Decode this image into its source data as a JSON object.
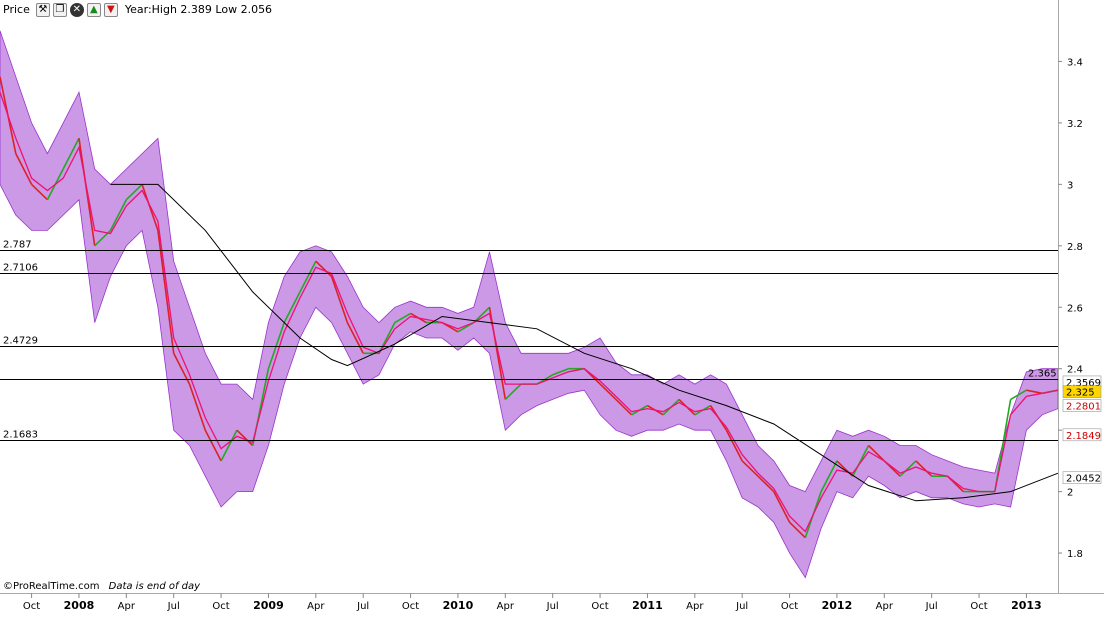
{
  "toolbar": {
    "label": "Price",
    "range_text": "Year:High 2.389 Low 2.056",
    "icons": [
      "wrench-icon",
      "window-icon",
      "close-icon",
      "move-up-icon",
      "move-down-icon"
    ]
  },
  "watermark": {
    "brand": "©ProRealTime.com",
    "note": "Data is end of day"
  },
  "chart_data": {
    "type": "line",
    "y_ticks": [
      3.4,
      3.2,
      3,
      2.8,
      2.6,
      2.4,
      2.2,
      2,
      1.8
    ],
    "y_tick_labels": [
      "3.4",
      "3.2",
      "3",
      "2.8",
      "2.6",
      "2.4",
      "",
      "2",
      "1.8"
    ],
    "ylim": [
      1.67,
      3.6
    ],
    "x_ticks": [
      {
        "date": "2007-10",
        "label": "Oct",
        "bold": false
      },
      {
        "date": "2008-01",
        "label": "2008",
        "bold": true
      },
      {
        "date": "2008-04",
        "label": "Apr",
        "bold": false
      },
      {
        "date": "2008-07",
        "label": "Jul",
        "bold": false
      },
      {
        "date": "2008-10",
        "label": "Oct",
        "bold": false
      },
      {
        "date": "2009-01",
        "label": "2009",
        "bold": true
      },
      {
        "date": "2009-04",
        "label": "Apr",
        "bold": false
      },
      {
        "date": "2009-07",
        "label": "Jul",
        "bold": false
      },
      {
        "date": "2009-10",
        "label": "Oct",
        "bold": false
      },
      {
        "date": "2010-01",
        "label": "2010",
        "bold": true
      },
      {
        "date": "2010-04",
        "label": "Apr",
        "bold": false
      },
      {
        "date": "2010-07",
        "label": "Jul",
        "bold": false
      },
      {
        "date": "2010-10",
        "label": "Oct",
        "bold": false
      },
      {
        "date": "2011-01",
        "label": "2011",
        "bold": true
      },
      {
        "date": "2011-04",
        "label": "Apr",
        "bold": false
      },
      {
        "date": "2011-07",
        "label": "Jul",
        "bold": false
      },
      {
        "date": "2011-10",
        "label": "Oct",
        "bold": false
      },
      {
        "date": "2012-01",
        "label": "2012",
        "bold": true
      },
      {
        "date": "2012-04",
        "label": "Apr",
        "bold": false
      },
      {
        "date": "2012-07",
        "label": "Jul",
        "bold": false
      },
      {
        "date": "2012-10",
        "label": "Oct",
        "bold": false
      },
      {
        "date": "2013-01",
        "label": "2013",
        "bold": true
      }
    ],
    "x_range": [
      "2007-08",
      "2013-03"
    ],
    "horizontal_lines": [
      {
        "value": 2.787,
        "label": "2.787"
      },
      {
        "value": 2.7106,
        "label": "2.7106"
      },
      {
        "value": 2.4729,
        "label": "2.4729"
      },
      {
        "value": 2.365,
        "label": "2.365"
      },
      {
        "value": 2.1683,
        "label": "2.1683"
      }
    ],
    "axis_markers": [
      {
        "value": 2.3569,
        "label": "2.3569",
        "bg": "#ffffff",
        "fg": "#000000"
      },
      {
        "value": 2.325,
        "label": "2.325",
        "bg": "#ffd700",
        "fg": "#000000"
      },
      {
        "value": 2.2801,
        "label": "2.2801",
        "bg": "#ffffff",
        "fg": "#cc0000"
      },
      {
        "value": 2.1849,
        "label": "2.1849",
        "bg": "#ffffff",
        "fg": "#cc0000"
      },
      {
        "value": 2.0452,
        "label": "2.0452",
        "bg": "#ffffff",
        "fg": "#000000"
      }
    ],
    "series": [
      {
        "role": "price",
        "x": [
          "2007-08",
          "2007-09",
          "2007-10",
          "2007-11",
          "2007-12",
          "2008-01",
          "2008-02",
          "2008-03",
          "2008-04",
          "2008-05",
          "2008-06",
          "2008-07",
          "2008-08",
          "2008-09",
          "2008-10",
          "2008-11",
          "2008-12",
          "2009-01",
          "2009-02",
          "2009-03",
          "2009-04",
          "2009-05",
          "2009-06",
          "2009-07",
          "2009-08",
          "2009-09",
          "2009-10",
          "2009-11",
          "2009-12",
          "2010-01",
          "2010-02",
          "2010-03",
          "2010-04",
          "2010-05",
          "2010-06",
          "2010-07",
          "2010-08",
          "2010-09",
          "2010-10",
          "2010-11",
          "2010-12",
          "2011-01",
          "2011-02",
          "2011-03",
          "2011-04",
          "2011-05",
          "2011-06",
          "2011-07",
          "2011-08",
          "2011-09",
          "2011-10",
          "2011-11",
          "2011-12",
          "2012-01",
          "2012-02",
          "2012-03",
          "2012-04",
          "2012-05",
          "2012-06",
          "2012-07",
          "2012-08",
          "2012-09",
          "2012-10",
          "2012-11",
          "2012-12",
          "2013-01",
          "2013-02",
          "2013-03"
        ],
        "values": [
          3.35,
          3.1,
          3.0,
          2.95,
          3.05,
          3.15,
          2.8,
          2.85,
          2.95,
          3.0,
          2.85,
          2.45,
          2.35,
          2.2,
          2.1,
          2.2,
          2.15,
          2.4,
          2.55,
          2.65,
          2.75,
          2.7,
          2.55,
          2.45,
          2.45,
          2.55,
          2.58,
          2.55,
          2.55,
          2.52,
          2.55,
          2.6,
          2.3,
          2.35,
          2.35,
          2.38,
          2.4,
          2.4,
          2.35,
          2.3,
          2.25,
          2.28,
          2.25,
          2.3,
          2.25,
          2.28,
          2.2,
          2.1,
          2.05,
          2.0,
          1.9,
          1.85,
          2.0,
          2.1,
          2.05,
          2.15,
          2.1,
          2.05,
          2.1,
          2.05,
          2.05,
          2.0,
          2.0,
          2.0,
          2.3,
          2.33,
          2.32,
          2.33
        ],
        "colors": {
          "up": "#22aa22",
          "down": "#dd2222"
        }
      },
      {
        "role": "moving-average-fast",
        "x": [
          "2007-08",
          "2007-09",
          "2007-10",
          "2007-11",
          "2007-12",
          "2008-01",
          "2008-02",
          "2008-03",
          "2008-04",
          "2008-05",
          "2008-06",
          "2008-07",
          "2008-08",
          "2008-09",
          "2008-10",
          "2008-11",
          "2008-12",
          "2009-01",
          "2009-02",
          "2009-03",
          "2009-04",
          "2009-05",
          "2009-06",
          "2009-07",
          "2009-08",
          "2009-09",
          "2009-10",
          "2009-11",
          "2009-12",
          "2010-01",
          "2010-02",
          "2010-03",
          "2010-04",
          "2010-05",
          "2010-06",
          "2010-07",
          "2010-08",
          "2010-09",
          "2010-10",
          "2010-11",
          "2010-12",
          "2011-01",
          "2011-02",
          "2011-03",
          "2011-04",
          "2011-05",
          "2011-06",
          "2011-07",
          "2011-08",
          "2011-09",
          "2011-10",
          "2011-11",
          "2011-12",
          "2012-01",
          "2012-02",
          "2012-03",
          "2012-04",
          "2012-05",
          "2012-06",
          "2012-07",
          "2012-08",
          "2012-09",
          "2012-10",
          "2012-11",
          "2012-12",
          "2013-01",
          "2013-02",
          "2013-03"
        ],
        "values": [
          3.3,
          3.15,
          3.02,
          2.98,
          3.02,
          3.12,
          2.85,
          2.84,
          2.93,
          2.98,
          2.88,
          2.5,
          2.38,
          2.24,
          2.14,
          2.18,
          2.16,
          2.36,
          2.52,
          2.63,
          2.73,
          2.71,
          2.58,
          2.47,
          2.45,
          2.53,
          2.57,
          2.56,
          2.55,
          2.53,
          2.55,
          2.58,
          2.35,
          2.35,
          2.35,
          2.37,
          2.39,
          2.4,
          2.36,
          2.31,
          2.26,
          2.27,
          2.26,
          2.29,
          2.26,
          2.27,
          2.21,
          2.12,
          2.06,
          2.01,
          1.92,
          1.87,
          1.98,
          2.07,
          2.06,
          2.13,
          2.1,
          2.06,
          2.08,
          2.06,
          2.05,
          2.01,
          2.0,
          2.0,
          2.25,
          2.31,
          2.32,
          2.33
        ],
        "color": "#ee1177"
      },
      {
        "role": "moving-average-slow",
        "x": [
          "2008-03",
          "2008-06",
          "2008-09",
          "2008-12",
          "2009-03",
          "2009-05",
          "2009-06",
          "2009-09",
          "2009-12",
          "2010-03",
          "2010-06",
          "2010-09",
          "2010-12",
          "2011-03",
          "2011-06",
          "2011-09",
          "2011-12",
          "2012-03",
          "2012-06",
          "2012-09",
          "2012-12",
          "2013-03"
        ],
        "values": [
          3.0,
          3.0,
          2.85,
          2.65,
          2.5,
          2.43,
          2.41,
          2.48,
          2.57,
          2.55,
          2.53,
          2.45,
          2.4,
          2.33,
          2.28,
          2.22,
          2.12,
          2.02,
          1.97,
          1.98,
          2.0,
          2.06
        ],
        "color": "#000000"
      },
      {
        "role": "band-upper",
        "x": [
          "2007-08",
          "2007-09",
          "2007-10",
          "2007-11",
          "2007-12",
          "2008-01",
          "2008-02",
          "2008-03",
          "2008-04",
          "2008-05",
          "2008-06",
          "2008-07",
          "2008-08",
          "2008-09",
          "2008-10",
          "2008-11",
          "2008-12",
          "2009-01",
          "2009-02",
          "2009-03",
          "2009-04",
          "2009-05",
          "2009-06",
          "2009-07",
          "2009-08",
          "2009-09",
          "2009-10",
          "2009-11",
          "2009-12",
          "2010-01",
          "2010-02",
          "2010-03",
          "2010-04",
          "2010-05",
          "2010-06",
          "2010-07",
          "2010-08",
          "2010-09",
          "2010-10",
          "2010-11",
          "2010-12",
          "2011-01",
          "2011-02",
          "2011-03",
          "2011-04",
          "2011-05",
          "2011-06",
          "2011-07",
          "2011-08",
          "2011-09",
          "2011-10",
          "2011-11",
          "2011-12",
          "2012-01",
          "2012-02",
          "2012-03",
          "2012-04",
          "2012-05",
          "2012-06",
          "2012-07",
          "2012-08",
          "2012-09",
          "2012-10",
          "2012-11",
          "2012-12",
          "2013-01",
          "2013-02",
          "2013-03"
        ],
        "values": [
          3.5,
          3.35,
          3.2,
          3.1,
          3.2,
          3.3,
          3.05,
          3.0,
          3.05,
          3.1,
          3.15,
          2.75,
          2.6,
          2.45,
          2.35,
          2.35,
          2.3,
          2.55,
          2.7,
          2.78,
          2.8,
          2.78,
          2.7,
          2.6,
          2.55,
          2.6,
          2.62,
          2.6,
          2.6,
          2.58,
          2.6,
          2.78,
          2.55,
          2.45,
          2.45,
          2.45,
          2.45,
          2.47,
          2.5,
          2.42,
          2.38,
          2.38,
          2.35,
          2.38,
          2.35,
          2.38,
          2.35,
          2.25,
          2.15,
          2.1,
          2.02,
          2.0,
          2.1,
          2.2,
          2.18,
          2.2,
          2.18,
          2.15,
          2.15,
          2.12,
          2.1,
          2.08,
          2.07,
          2.06,
          2.25,
          2.39,
          2.4,
          2.4
        ],
        "color": "#9933cc"
      },
      {
        "role": "band-lower",
        "x": [
          "2007-08",
          "2007-09",
          "2007-10",
          "2007-11",
          "2007-12",
          "2008-01",
          "2008-02",
          "2008-03",
          "2008-04",
          "2008-05",
          "2008-06",
          "2008-07",
          "2008-08",
          "2008-09",
          "2008-10",
          "2008-11",
          "2008-12",
          "2009-01",
          "2009-02",
          "2009-03",
          "2009-04",
          "2009-05",
          "2009-06",
          "2009-07",
          "2009-08",
          "2009-09",
          "2009-10",
          "2009-11",
          "2009-12",
          "2010-01",
          "2010-02",
          "2010-03",
          "2010-04",
          "2010-05",
          "2010-06",
          "2010-07",
          "2010-08",
          "2010-09",
          "2010-10",
          "2010-11",
          "2010-12",
          "2011-01",
          "2011-02",
          "2011-03",
          "2011-04",
          "2011-05",
          "2011-06",
          "2011-07",
          "2011-08",
          "2011-09",
          "2011-10",
          "2011-11",
          "2011-12",
          "2012-01",
          "2012-02",
          "2012-03",
          "2012-04",
          "2012-05",
          "2012-06",
          "2012-07",
          "2012-08",
          "2012-09",
          "2012-10",
          "2012-11",
          "2012-12",
          "2013-01",
          "2013-02",
          "2013-03"
        ],
        "values": [
          3.0,
          2.9,
          2.85,
          2.85,
          2.9,
          2.95,
          2.55,
          2.7,
          2.8,
          2.85,
          2.6,
          2.2,
          2.15,
          2.05,
          1.95,
          2.0,
          2.0,
          2.15,
          2.35,
          2.5,
          2.6,
          2.55,
          2.45,
          2.35,
          2.38,
          2.48,
          2.52,
          2.5,
          2.5,
          2.46,
          2.5,
          2.45,
          2.2,
          2.25,
          2.28,
          2.3,
          2.32,
          2.33,
          2.25,
          2.2,
          2.18,
          2.2,
          2.2,
          2.22,
          2.2,
          2.2,
          2.1,
          1.98,
          1.95,
          1.9,
          1.8,
          1.72,
          1.88,
          2.0,
          1.98,
          2.05,
          2.02,
          1.98,
          2.0,
          1.98,
          1.98,
          1.96,
          1.95,
          1.96,
          1.95,
          2.2,
          2.25,
          2.27
        ],
        "color": "#9933cc"
      }
    ],
    "colors": {
      "band_fill": "#cc99e6",
      "band_stroke": "#9933cc",
      "moving_average_fast": "#ee1177",
      "moving_average_slow": "#000000",
      "price_up": "#22aa22",
      "price_down": "#dd2222",
      "horizontal_line": "#000000",
      "axis": "#aaaaaa"
    },
    "grid": false
  }
}
